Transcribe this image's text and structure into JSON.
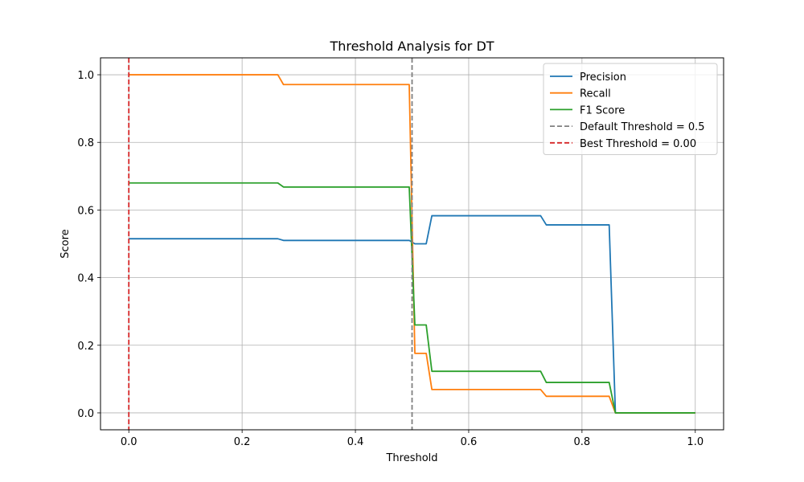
{
  "chart_data": {
    "type": "line",
    "title": "Threshold Analysis for DT",
    "xlabel": "Threshold",
    "ylabel": "Score",
    "xlim": [
      -0.05,
      1.05
    ],
    "ylim": [
      -0.05,
      1.05
    ],
    "xticks": [
      0.0,
      0.2,
      0.4,
      0.6,
      0.8,
      1.0
    ],
    "xtick_labels": [
      "0.0",
      "0.2",
      "0.4",
      "0.6",
      "0.8",
      "1.0"
    ],
    "yticks": [
      0.0,
      0.2,
      0.4,
      0.6,
      0.8,
      1.0
    ],
    "ytick_labels": [
      "0.0",
      "0.2",
      "0.4",
      "0.6",
      "0.8",
      "1.0"
    ],
    "grid": true,
    "legend_position": "top-right",
    "series": [
      {
        "name": "Precision",
        "color": "#1f77b4",
        "style": "solid",
        "x": [
          0.0,
          0.263,
          0.273,
          0.495,
          0.505,
          0.525,
          0.535,
          0.727,
          0.737,
          0.848,
          0.859,
          1.0
        ],
        "y": [
          0.515,
          0.515,
          0.51,
          0.51,
          0.5,
          0.5,
          0.583,
          0.583,
          0.556,
          0.556,
          0.0,
          0.0
        ]
      },
      {
        "name": "Recall",
        "color": "#ff7f0e",
        "style": "solid",
        "x": [
          0.0,
          0.263,
          0.273,
          0.495,
          0.505,
          0.525,
          0.535,
          0.727,
          0.737,
          0.848,
          0.859,
          1.0
        ],
        "y": [
          1.0,
          1.0,
          0.971,
          0.971,
          0.176,
          0.176,
          0.069,
          0.069,
          0.049,
          0.049,
          0.0,
          0.0
        ]
      },
      {
        "name": "F1 Score",
        "color": "#2ca02c",
        "style": "solid",
        "x": [
          0.0,
          0.263,
          0.273,
          0.495,
          0.505,
          0.525,
          0.535,
          0.727,
          0.737,
          0.848,
          0.859,
          1.0
        ],
        "y": [
          0.68,
          0.68,
          0.668,
          0.668,
          0.26,
          0.26,
          0.123,
          0.123,
          0.09,
          0.09,
          0.0,
          0.0
        ]
      },
      {
        "name": "Default Threshold = 0.5",
        "color": "#808080",
        "style": "dashed",
        "vline": 0.5
      },
      {
        "name": "Best Threshold = 0.00",
        "color": "#d62728",
        "style": "dashed",
        "vline": 0.0
      }
    ]
  }
}
